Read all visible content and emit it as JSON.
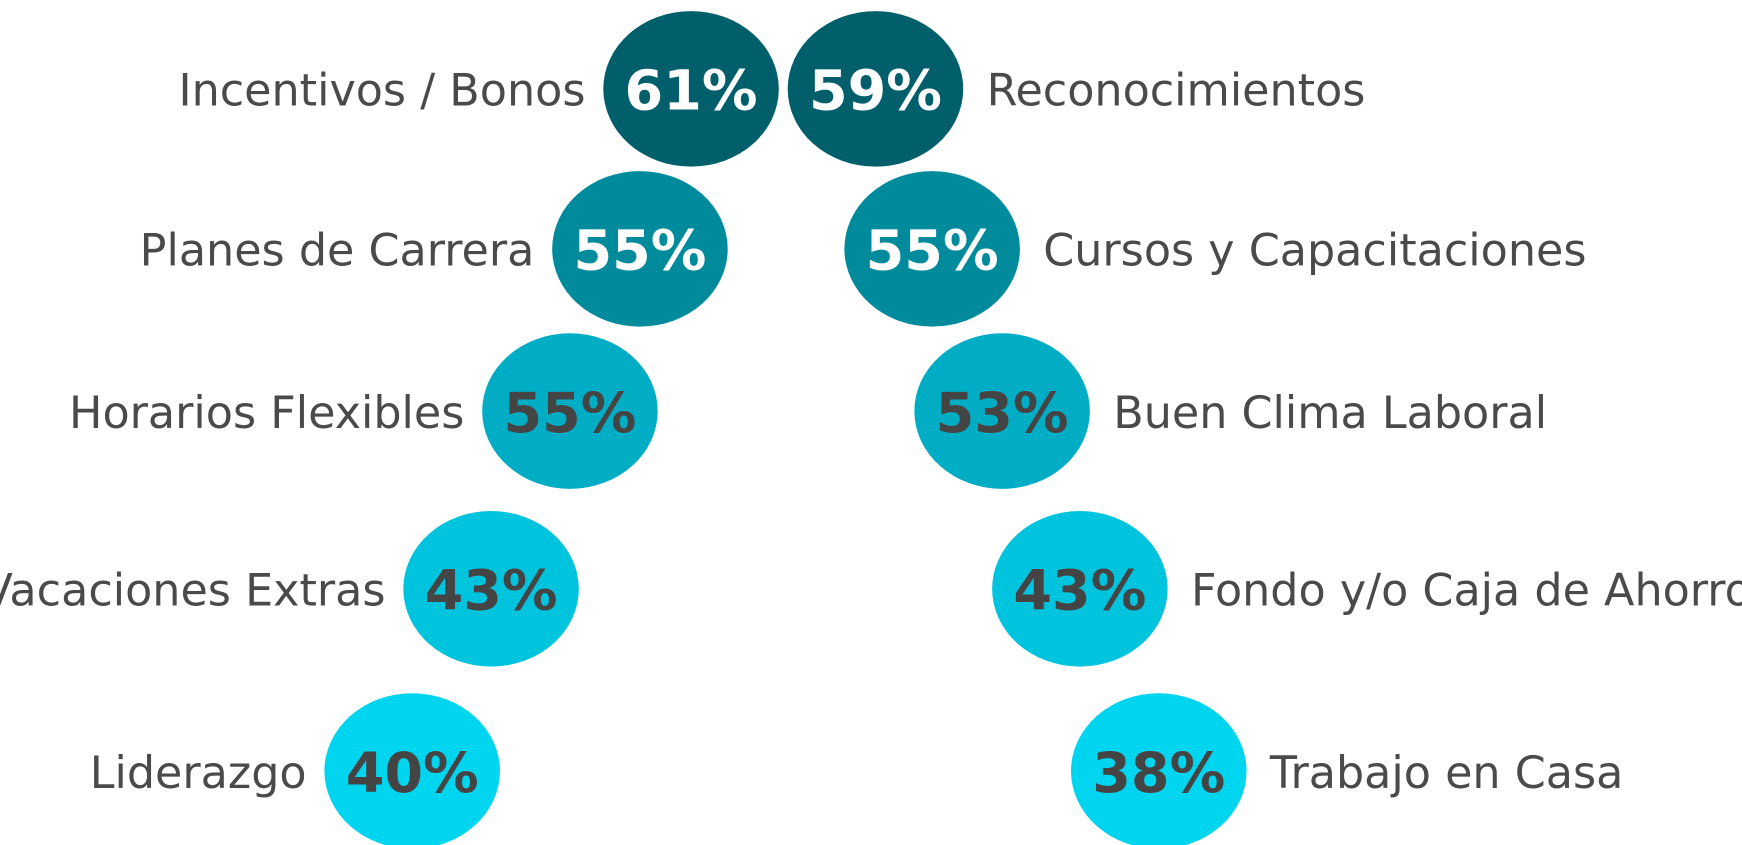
{
  "left": [
    {
      "label": "Incentivos / Bonos",
      "value": "61%"
    },
    {
      "label": "Planes de Carrera",
      "value": "55%"
    },
    {
      "label": "Horarios Flexibles",
      "value": "55%"
    },
    {
      "label": "Vacaciones Extras",
      "value": "43%"
    },
    {
      "label": "Liderazgo",
      "value": "40%"
    }
  ],
  "right": [
    {
      "label": "Reconocimientos",
      "value": "59%"
    },
    {
      "label": "Cursos y Capacitaciones",
      "value": "55%"
    },
    {
      "label": "Buen Clima Laboral",
      "value": "53%"
    },
    {
      "label": "Fondo y/o Caja de Ahorro",
      "value": "43%"
    },
    {
      "label": "Trabajo en Casa",
      "value": "38%"
    }
  ]
}
